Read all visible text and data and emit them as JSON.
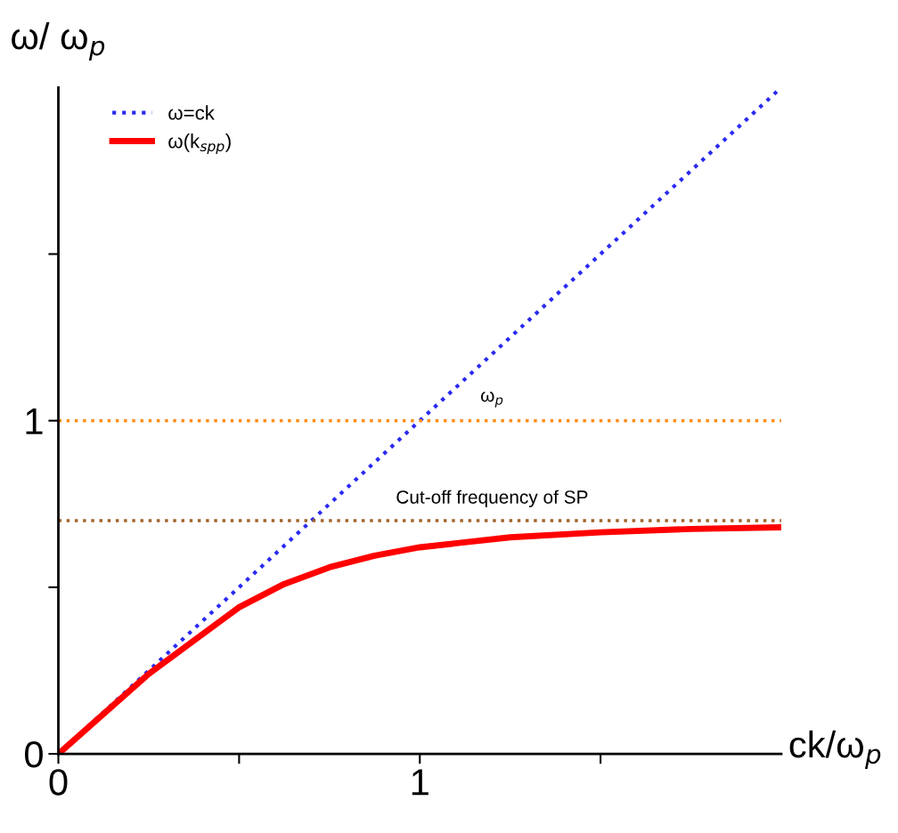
{
  "chart_data": {
    "type": "line",
    "xlabel": "ck/ω$_{p}$",
    "ylabel": "ω/ ω$_{p}$",
    "xlim": [
      0,
      2
    ],
    "ylim": [
      0,
      2
    ],
    "xticks": [
      0,
      {
        "value": 0.5,
        "label": null
      },
      1,
      {
        "value": 1.5,
        "label": null
      }
    ],
    "yticks": [
      0,
      {
        "value": 0.5,
        "label": null
      },
      1,
      {
        "value": 1.5,
        "label": null
      }
    ],
    "series": [
      {
        "name": "ω=ck",
        "color": "#2a2af0",
        "line_style": "dotted",
        "x": [
          0,
          2
        ],
        "values": [
          0,
          2
        ]
      },
      {
        "name": "ω(k$_{spp}$)",
        "color": "#ff0000",
        "line_style": "solid",
        "x": [
          0,
          0.25,
          0.375,
          0.5,
          0.625,
          0.75,
          0.875,
          1,
          1.25,
          1.5,
          1.75,
          2
        ],
        "values": [
          0,
          0.24,
          0.34,
          0.44,
          0.51,
          0.56,
          0.595,
          0.62,
          0.65,
          0.665,
          0.675,
          0.68
        ]
      }
    ],
    "ref_lines": [
      {
        "axis": "y",
        "value": 1,
        "label": "ω$_{p}$",
        "color": "#ff8c1a",
        "line_style": "dotted"
      },
      {
        "axis": "y",
        "value": 0.7,
        "label": "Cut-off frequency of SP",
        "color": "#a0642a",
        "line_style": "dotted"
      }
    ],
    "legend": "top left",
    "grid": false,
    "marker": "none"
  }
}
